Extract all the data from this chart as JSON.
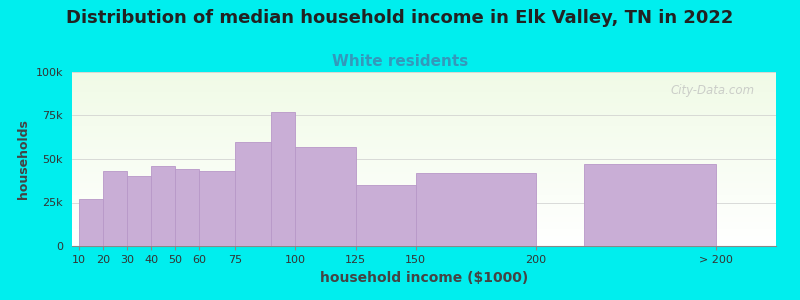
{
  "title": "Distribution of median household income in Elk Valley, TN in 2022",
  "subtitle": "White residents",
  "xlabel": "household income ($1000)",
  "ylabel": "households",
  "bg_color": "#00EEEE",
  "bar_color": "#c9aed6",
  "bar_edge_color": "#b898c8",
  "values": [
    27000,
    43000,
    40000,
    46000,
    44000,
    43000,
    60000,
    77000,
    57000,
    35000,
    42000,
    47000
  ],
  "bar_lefts": [
    10,
    20,
    30,
    40,
    50,
    60,
    75,
    90,
    100,
    125,
    150,
    220
  ],
  "bar_widths": [
    10,
    10,
    10,
    10,
    10,
    15,
    15,
    10,
    25,
    25,
    50,
    55
  ],
  "tick_positions": [
    10,
    20,
    30,
    40,
    50,
    60,
    75,
    100,
    125,
    150,
    200,
    275
  ],
  "tick_labels": [
    "10",
    "20",
    "30",
    "40",
    "50",
    "60",
    "75",
    "100",
    "125",
    "150",
    "200",
    "> 200"
  ],
  "ylim": [
    0,
    100000
  ],
  "yticks": [
    0,
    25000,
    50000,
    75000,
    100000
  ],
  "ytick_labels": [
    "0",
    "25k",
    "50k",
    "75k",
    "100k"
  ],
  "xlim": [
    7,
    300
  ],
  "title_fontsize": 13,
  "subtitle_fontsize": 11,
  "subtitle_color": "#3399bb",
  "watermark": "City-Data.com"
}
